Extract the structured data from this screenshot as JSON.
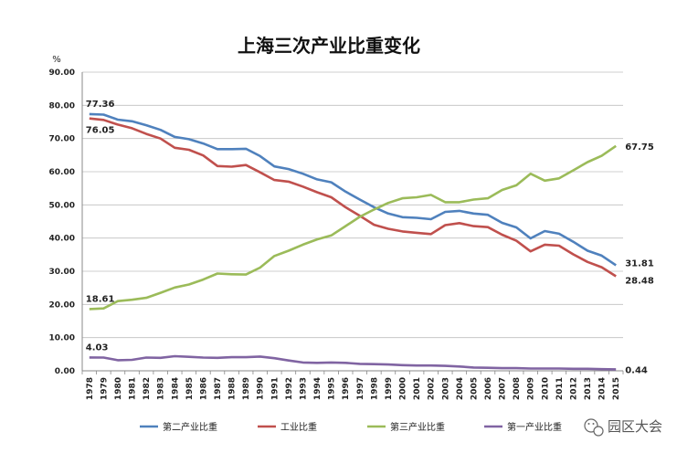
{
  "chart_data": {
    "type": "line",
    "title": "上海三次产业比重变化",
    "ylabel": "%",
    "xlabel": "",
    "ylim": [
      0,
      90
    ],
    "yticks": [
      "0.00",
      "10.00",
      "20.00",
      "30.00",
      "40.00",
      "50.00",
      "60.00",
      "70.00",
      "80.00",
      "90.00"
    ],
    "grid": true,
    "legend_position": "bottom",
    "x": [
      "1978",
      "1979",
      "1980",
      "1981",
      "1982",
      "1983",
      "1984",
      "1985",
      "1986",
      "1987",
      "1988",
      "1989",
      "1990",
      "1991",
      "1992",
      "1993",
      "1994",
      "1995",
      "1996",
      "1997",
      "1998",
      "1999",
      "2000",
      "2001",
      "2002",
      "2003",
      "2004",
      "2005",
      "2006",
      "2007",
      "2008",
      "2009",
      "2010",
      "2011",
      "2012",
      "2013",
      "2014",
      "2015"
    ],
    "series": [
      {
        "name": "第二产业比重",
        "color": "#4f81bd",
        "values": [
          77.36,
          77.2,
          75.7,
          75.2,
          74.0,
          72.6,
          70.5,
          69.8,
          68.5,
          66.8,
          66.8,
          66.9,
          64.7,
          61.6,
          60.8,
          59.4,
          57.7,
          56.8,
          54.0,
          51.6,
          49.3,
          47.4,
          46.3,
          46.1,
          45.7,
          47.9,
          48.2,
          47.4,
          47.0,
          44.6,
          43.2,
          39.9,
          42.1,
          41.3,
          38.9,
          36.2,
          34.7,
          31.81
        ]
      },
      {
        "name": "工业比重",
        "color": "#c0504d",
        "values": [
          76.05,
          75.6,
          74.2,
          73.1,
          71.4,
          70.0,
          67.2,
          66.6,
          64.9,
          61.7,
          61.5,
          62.0,
          59.8,
          57.5,
          57.0,
          55.5,
          53.8,
          52.3,
          49.3,
          46.7,
          44.0,
          42.8,
          42.0,
          41.6,
          41.2,
          43.9,
          44.5,
          43.6,
          43.3,
          41.0,
          39.2,
          36.0,
          38.0,
          37.7,
          35.1,
          32.8,
          31.2,
          28.48
        ]
      },
      {
        "name": "第三产业比重",
        "color": "#9bbb59",
        "values": [
          18.61,
          18.8,
          21.0,
          21.4,
          22.0,
          23.5,
          25.1,
          26.0,
          27.5,
          29.3,
          29.1,
          29.0,
          31.1,
          34.6,
          36.2,
          38.0,
          39.6,
          40.8,
          43.6,
          46.4,
          48.6,
          50.6,
          52.0,
          52.3,
          53.0,
          50.8,
          50.8,
          51.6,
          52.0,
          54.5,
          55.9,
          59.4,
          57.3,
          58.0,
          60.4,
          62.9,
          64.8,
          67.75
        ]
      },
      {
        "name": "第一产业比重",
        "color": "#8064a2",
        "values": [
          4.03,
          4.0,
          3.2,
          3.3,
          4.0,
          3.9,
          4.4,
          4.2,
          4.0,
          3.9,
          4.1,
          4.1,
          4.3,
          3.8,
          3.1,
          2.5,
          2.4,
          2.5,
          2.4,
          2.1,
          2.0,
          1.9,
          1.7,
          1.6,
          1.6,
          1.5,
          1.3,
          1.0,
          0.9,
          0.8,
          0.8,
          0.7,
          0.7,
          0.7,
          0.6,
          0.6,
          0.5,
          0.44
        ]
      }
    ],
    "annotations": [
      {
        "text": "77.36",
        "series": 0,
        "index": 0,
        "pos": "above"
      },
      {
        "text": "76.05",
        "series": 1,
        "index": 0,
        "pos": "below"
      },
      {
        "text": "18.61",
        "series": 2,
        "index": 0,
        "pos": "above"
      },
      {
        "text": "4.03",
        "series": 3,
        "index": 0,
        "pos": "above"
      },
      {
        "text": "67.75",
        "series": 2,
        "index": 37,
        "pos": "right"
      },
      {
        "text": "31.81",
        "series": 0,
        "index": 37,
        "pos": "right"
      },
      {
        "text": "28.48",
        "series": 1,
        "index": 37,
        "pos": "right"
      },
      {
        "text": "0.44",
        "series": 3,
        "index": 37,
        "pos": "right"
      }
    ]
  },
  "watermark": {
    "text": "园区大会",
    "icon": "wechat-icon"
  }
}
